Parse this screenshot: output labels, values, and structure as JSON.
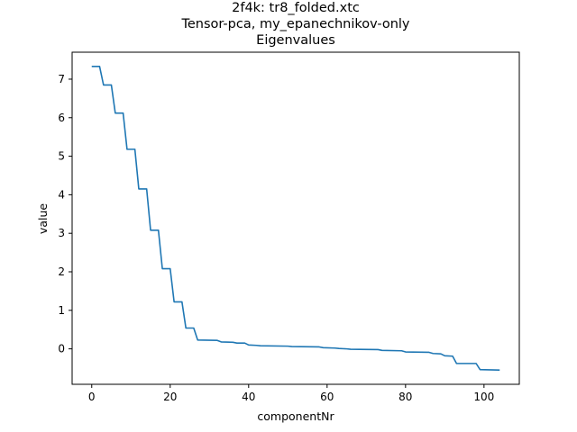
{
  "chart_data": {
    "type": "line",
    "title_lines": [
      "2f4k: tr8_folded.xtc",
      "Tensor-pca, my_epanechnikov-only",
      "Eigenvalues"
    ],
    "xlabel": "componentNr",
    "ylabel": "value",
    "xlim": [
      -5,
      109
    ],
    "ylim": [
      -0.92,
      7.7
    ],
    "xticks": [
      0,
      20,
      40,
      60,
      80,
      100
    ],
    "yticks": [
      0,
      1,
      2,
      3,
      4,
      5,
      6,
      7
    ],
    "grid": false,
    "series": [
      {
        "color": "#1f77b4",
        "points": [
          [
            0,
            7.33
          ],
          [
            2,
            7.33
          ],
          [
            3,
            6.85
          ],
          [
            5,
            6.85
          ],
          [
            6,
            6.12
          ],
          [
            8,
            6.12
          ],
          [
            9,
            5.18
          ],
          [
            11,
            5.18
          ],
          [
            12,
            4.15
          ],
          [
            14,
            4.15
          ],
          [
            15,
            3.08
          ],
          [
            17,
            3.08
          ],
          [
            18,
            2.08
          ],
          [
            20,
            2.08
          ],
          [
            21,
            1.22
          ],
          [
            23,
            1.22
          ],
          [
            24,
            0.54
          ],
          [
            26,
            0.54
          ],
          [
            27,
            0.23
          ],
          [
            32,
            0.22
          ],
          [
            33,
            0.18
          ],
          [
            36,
            0.17
          ],
          [
            37,
            0.15
          ],
          [
            39,
            0.15
          ],
          [
            40,
            0.1
          ],
          [
            42,
            0.09
          ],
          [
            43,
            0.08
          ],
          [
            50,
            0.07
          ],
          [
            51,
            0.06
          ],
          [
            58,
            0.05
          ],
          [
            59,
            0.03
          ],
          [
            62,
            0.02
          ],
          [
            63,
            0.01
          ],
          [
            65,
            0.0
          ],
          [
            66,
            -0.01
          ],
          [
            73,
            -0.02
          ],
          [
            74,
            -0.04
          ],
          [
            79,
            -0.05
          ],
          [
            80,
            -0.08
          ],
          [
            86,
            -0.09
          ],
          [
            87,
            -0.12
          ],
          [
            89,
            -0.13
          ],
          [
            90,
            -0.18
          ],
          [
            92,
            -0.19
          ],
          [
            93,
            -0.38
          ],
          [
            98,
            -0.38
          ],
          [
            99,
            -0.54
          ],
          [
            104,
            -0.55
          ]
        ]
      }
    ]
  }
}
